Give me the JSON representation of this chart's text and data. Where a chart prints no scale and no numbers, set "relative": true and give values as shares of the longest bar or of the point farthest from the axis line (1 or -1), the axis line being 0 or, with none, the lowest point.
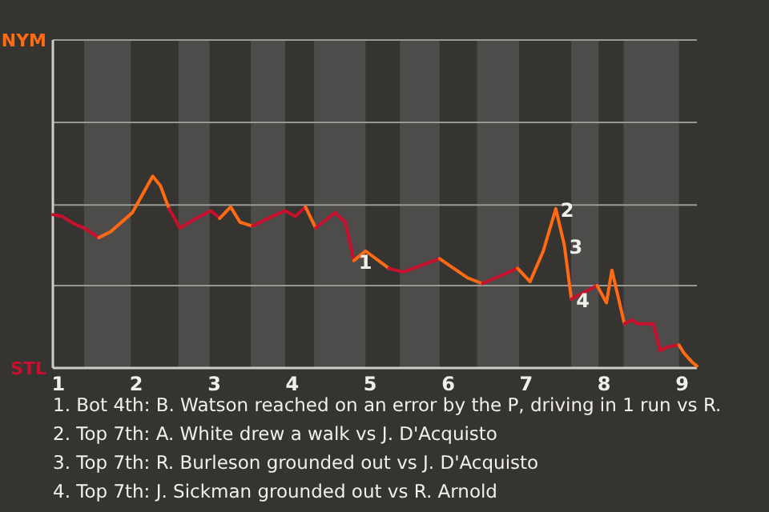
{
  "chart_data": {
    "type": "line",
    "relative": true,
    "series": [
      {
        "color": "#c8102e",
        "x": [
          0.93,
          1.05,
          1.21,
          1.33,
          1.52
        ],
        "values": [
          0.8,
          0.79,
          0.75,
          0.73,
          0.68
        ]
      },
      {
        "color": "#ff6a13",
        "x": [
          1.52,
          1.67,
          1.95,
          2.21,
          2.31,
          2.42
        ],
        "values": [
          0.68,
          0.71,
          0.81,
          1,
          0.95,
          0.83
        ]
      },
      {
        "color": "#c8102e",
        "x": [
          2.42,
          2.56,
          2.77,
          2.96,
          3.07
        ],
        "values": [
          0.83,
          0.73,
          0.78,
          0.82,
          0.78
        ]
      },
      {
        "color": "#ff6a13",
        "x": [
          3.07,
          3.21,
          3.33,
          3.49
        ],
        "values": [
          0.78,
          0.84,
          0.76,
          0.74
        ]
      },
      {
        "color": "#c8102e",
        "x": [
          3.49,
          3.74,
          3.91,
          4.04,
          4.17
        ],
        "values": [
          0.74,
          0.79,
          0.82,
          0.79,
          0.84
        ]
      },
      {
        "color": "#ff6a13",
        "x": [
          4.17,
          4.3
        ],
        "values": [
          0.84,
          0.73
        ]
      },
      {
        "color": "#c8102e",
        "x": [
          4.3,
          4.55,
          4.68,
          4.79
        ],
        "values": [
          0.73,
          0.81,
          0.76,
          0.56
        ]
      },
      {
        "color": "#ff6a13",
        "x": [
          4.79,
          4.94,
          5.24
        ],
        "values": [
          0.56,
          0.61,
          0.52
        ]
      },
      {
        "color": "#c8102e",
        "x": [
          5.24,
          5.42,
          5.89
        ],
        "values": [
          0.52,
          0.5,
          0.57
        ]
      },
      {
        "color": "#ff6a13",
        "x": [
          5.89,
          6.25,
          6.44
        ],
        "values": [
          0.57,
          0.47,
          0.44
        ]
      },
      {
        "color": "#c8102e",
        "x": [
          6.44,
          6.89
        ],
        "values": [
          0.44,
          0.52
        ]
      },
      {
        "color": "#ff6a13",
        "x": [
          6.89,
          7.05,
          7.22,
          7.38,
          7.49,
          7.58
        ],
        "values": [
          0.52,
          0.45,
          0.61,
          0.83,
          0.64,
          0.36
        ]
      },
      {
        "color": "#c8102e",
        "x": [
          7.58,
          7.91
        ],
        "values": [
          0.36,
          0.43
        ]
      },
      {
        "color": "#ff6a13",
        "x": [
          7.91,
          8.03,
          8.1,
          8.26
        ],
        "values": [
          0.43,
          0.34,
          0.51,
          0.23
        ]
      },
      {
        "color": "#c8102e",
        "x": [
          8.26,
          8.35,
          8.44,
          8.63,
          8.72,
          8.81,
          8.96
        ],
        "values": [
          0.23,
          0.25,
          0.23,
          0.23,
          0.09,
          0.11,
          0.12
        ]
      },
      {
        "color": "#ff6a13",
        "x": [
          8.96,
          9.02,
          9.13,
          9.19
        ],
        "values": [
          0.12,
          0.08,
          0.03,
          0.01
        ]
      }
    ],
    "xlim": [
      0.93,
      9.19
    ],
    "xticks": [
      1,
      2,
      3,
      4,
      5,
      6,
      7,
      8,
      9
    ],
    "ref_lines": [
      {
        "axis": "y",
        "value": 0.43,
        "color": "#9a9894"
      },
      {
        "axis": "y",
        "value": 0.85,
        "color": "#9a9894"
      },
      {
        "axis": "y",
        "value": 1.28,
        "color": "#9a9894"
      },
      {
        "axis": "y",
        "value": 1.71,
        "label": "NYM",
        "color": "#9a9894"
      }
    ],
    "bands": [
      {
        "axis": "x",
        "from": 1.33,
        "to": 1.93,
        "color": "#4d4c4a"
      },
      {
        "axis": "x",
        "from": 2.54,
        "to": 2.94,
        "color": "#4d4c4a"
      },
      {
        "axis": "x",
        "from": 3.47,
        "to": 3.91,
        "color": "#4d4c4a"
      },
      {
        "axis": "x",
        "from": 4.28,
        "to": 4.94,
        "color": "#4d4c4a"
      },
      {
        "axis": "x",
        "from": 5.38,
        "to": 5.89,
        "color": "#4d4c4a"
      },
      {
        "axis": "x",
        "from": 6.37,
        "to": 6.91,
        "color": "#4d4c4a"
      },
      {
        "axis": "x",
        "from": 7.58,
        "to": 7.93,
        "color": "#4d4c4a"
      },
      {
        "axis": "x",
        "from": 8.25,
        "to": 8.96,
        "color": "#4d4c4a"
      }
    ],
    "annotations": [
      {
        "text": "1",
        "x": 4.79,
        "y": 0.56
      },
      {
        "text": "2",
        "x": 7.38,
        "y": 0.83
      },
      {
        "text": "3",
        "x": 7.49,
        "y": 0.64
      },
      {
        "text": "4",
        "x": 7.58,
        "y": 0.36
      },
      "STL",
      "1. Bot 4th: B. Watson reached on an error by the P, driving in 1 run vs R.",
      "2. Top 7th: A. White drew a walk vs J. D'Acquisto",
      "3. Top 7th: R. Burleson grounded out vs J. D'Acquisto",
      "4. Top 7th: J. Sickman grounded out vs R. Arnold"
    ]
  }
}
